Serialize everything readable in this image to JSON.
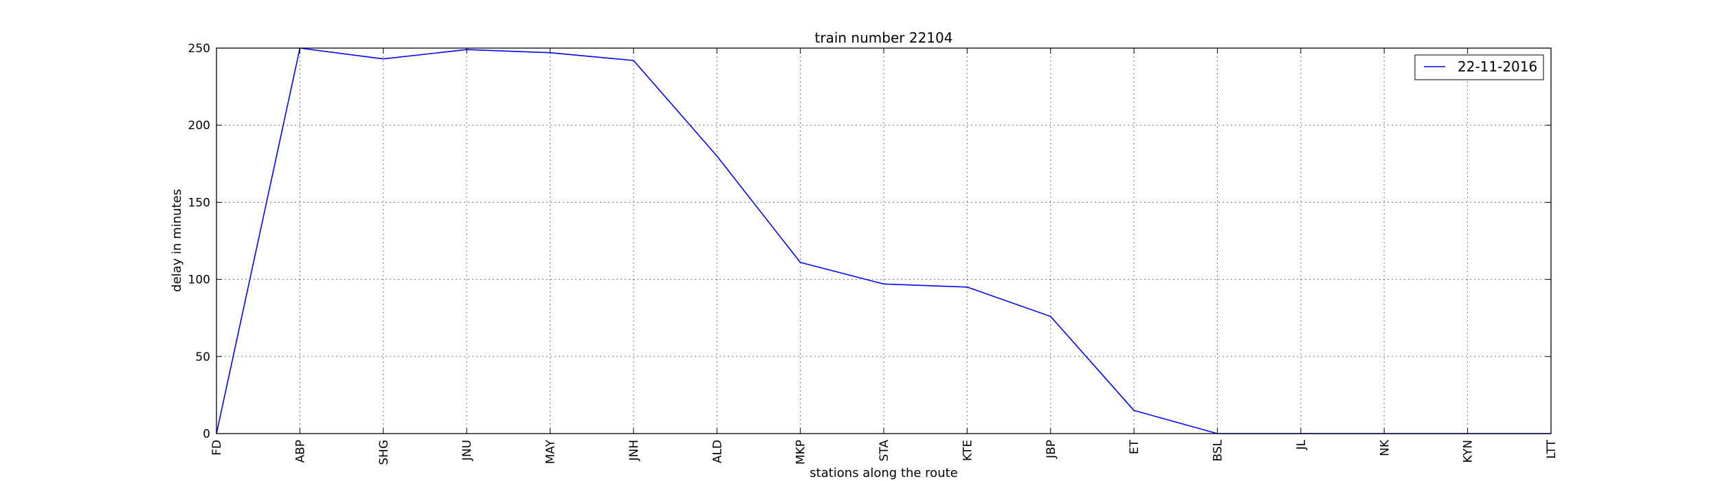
{
  "chart_data": {
    "type": "line",
    "title": "train number 22104",
    "xlabel": "stations along the route",
    "ylabel": "delay in minutes",
    "categories": [
      "FD",
      "ABP",
      "SHG",
      "JNU",
      "MAY",
      "JNH",
      "ALD",
      "MKP",
      "STA",
      "KTE",
      "JBP",
      "ET",
      "BSL",
      "JL",
      "NK",
      "KYN",
      "LTT"
    ],
    "series": [
      {
        "name": "22-11-2016",
        "color": "#0000ff",
        "values": [
          0,
          250,
          243,
          249,
          247,
          242,
          180,
          111,
          97,
          95,
          76,
          15,
          0,
          0,
          0,
          0,
          0
        ]
      }
    ],
    "ylim": [
      0,
      250
    ],
    "yticks": [
      0,
      50,
      100,
      150,
      200,
      250
    ],
    "grid": true,
    "legend_position": "top-right"
  }
}
